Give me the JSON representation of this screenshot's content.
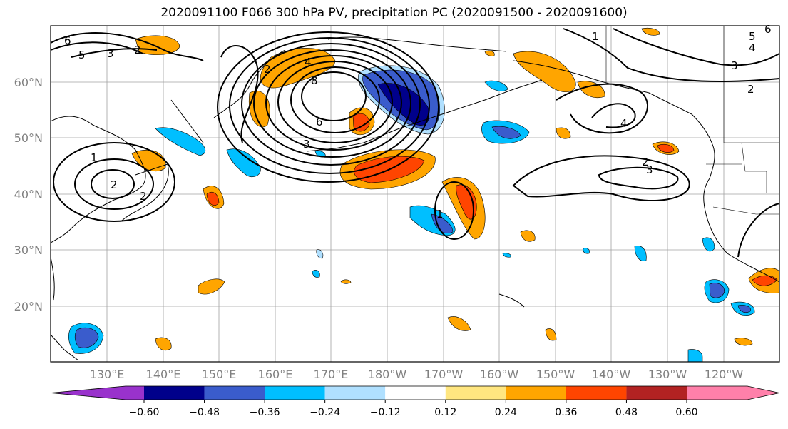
{
  "title": "2020091100 F066 300 hPa PV, precipitation PC (2020091500 - 2020091600)",
  "lat_labels": [
    "60°N",
    "50°N",
    "40°N",
    "30°N",
    "20°N"
  ],
  "lon_labels": [
    "130°E",
    "140°E",
    "150°E",
    "160°E",
    "170°E",
    "180°W",
    "170°W",
    "160°W",
    "150°W",
    "140°W",
    "130°W",
    "120°W"
  ],
  "colorbar": {
    "ticks": [
      "−0.60",
      "−0.48",
      "−0.36",
      "−0.24",
      "−0.12",
      "0.12",
      "0.24",
      "0.36",
      "0.48",
      "0.60"
    ],
    "colors": [
      "#9932cc",
      "#00008b",
      "#3a5ccc",
      "#00bfff",
      "#b0e0ff",
      "#ffffff",
      "#ffe680",
      "#ffa500",
      "#ff4500",
      "#b22222",
      "#ff80aa"
    ]
  },
  "contour_labels": [
    "1",
    "2",
    "3",
    "4",
    "5",
    "6",
    "8"
  ],
  "colors": {
    "pos_light": "#ffe680",
    "pos_mid": "#ffa500",
    "pos_strong": "#ff4500",
    "neg_light": "#b0e0ff",
    "neg_mid": "#00bfff",
    "neg_strong": "#3a5ccc",
    "neg_max": "#00008b"
  }
}
